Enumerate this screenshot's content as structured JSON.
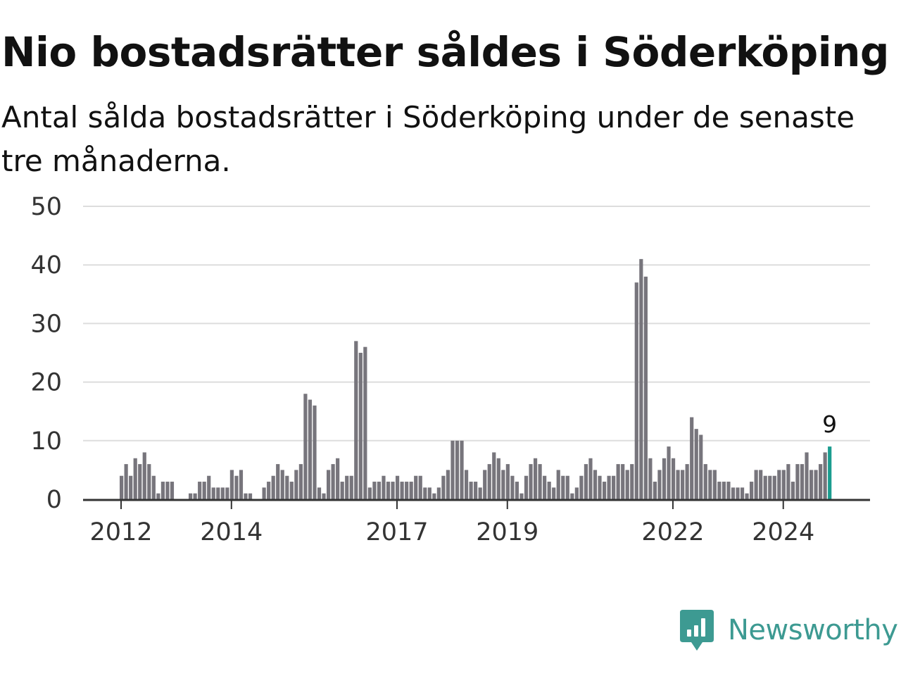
{
  "header": {
    "title": "Nio bostadsrätter såldes i Söderköping",
    "subtitle": "Antal sålda bostadsrätter i Söderköping under de senaste tre månaderna."
  },
  "branding": {
    "name": "Newsworthy",
    "color": "#3d9a92",
    "icon": "newsworthy-chart-bubble-icon"
  },
  "colors": {
    "bar": "#77757c",
    "highlight": "#1b9c8f",
    "grid": "#dddddd",
    "axis": "#333333"
  },
  "chart_data": {
    "type": "bar",
    "start_year": 2012,
    "ylim": [
      0,
      50
    ],
    "yticks": [
      0,
      10,
      20,
      30,
      40,
      50
    ],
    "xticks": [
      "2012",
      "2014",
      "2017",
      "2019",
      "2022",
      "2024"
    ],
    "xtick_positions": [
      2012,
      2014,
      2017,
      2019,
      2022,
      2024
    ],
    "values": [
      4,
      6,
      4,
      7,
      6,
      8,
      6,
      4,
      1,
      3,
      3,
      3,
      0,
      0,
      0,
      1,
      1,
      3,
      3,
      4,
      2,
      2,
      2,
      2,
      5,
      4,
      5,
      1,
      1,
      0,
      0,
      2,
      3,
      4,
      6,
      5,
      4,
      3,
      5,
      6,
      18,
      17,
      16,
      2,
      1,
      5,
      6,
      7,
      3,
      4,
      4,
      27,
      25,
      26,
      2,
      3,
      3,
      4,
      3,
      3,
      4,
      3,
      3,
      3,
      4,
      4,
      2,
      2,
      1,
      2,
      4,
      5,
      10,
      10,
      10,
      5,
      3,
      3,
      2,
      5,
      6,
      8,
      7,
      5,
      6,
      4,
      3,
      1,
      4,
      6,
      7,
      6,
      4,
      3,
      2,
      5,
      4,
      4,
      1,
      2,
      4,
      6,
      7,
      5,
      4,
      3,
      4,
      4,
      6,
      6,
      5,
      6,
      37,
      41,
      38,
      7,
      3,
      5,
      7,
      9,
      7,
      5,
      5,
      6,
      14,
      12,
      11,
      6,
      5,
      5,
      3,
      3,
      3,
      2,
      2,
      2,
      1,
      3,
      5,
      5,
      4,
      4,
      4,
      5,
      5,
      6,
      3,
      6,
      6,
      8,
      5,
      5,
      6,
      8,
      9
    ],
    "highlight_last": true,
    "last_value_label": "9"
  }
}
